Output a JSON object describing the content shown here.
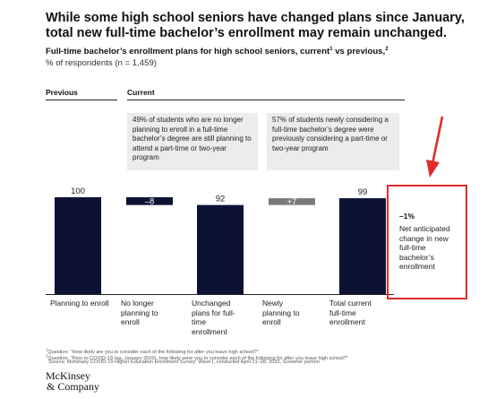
{
  "header": {
    "title": "While some high school seniors have changed plans since January, total new full-time bachelor’s enrollment may remain unchanged.",
    "subtitle": "Full-time bachelor’s enrollment plans for high school seniors, current",
    "subtitle_sup1": "1",
    "subtitle_mid": " vs previous,",
    "subtitle_sup2": "2",
    "unit_note": "% of respondents (n = 1,459)"
  },
  "columns": {
    "previous": "Previous",
    "current": "Current"
  },
  "notes": [
    "49% of students who are no longer planning to enroll in a full-time bachelor’s degree are still planning to attend a part-time or two-year program",
    "57% of students newly considering a full-time bachelor’s degree were previously considering a part-time or two-year program"
  ],
  "chart_data": {
    "type": "waterfall",
    "categories": [
      "Planning to enroll",
      "No longer planning to enroll",
      "Unchanged plans for full-time enrollment",
      "Newly planning to enroll",
      "Total current full-time enrollment"
    ],
    "values": [
      100,
      -8,
      92,
      7,
      99
    ],
    "data_labels": [
      "100",
      "–8",
      "92",
      "+7",
      "99"
    ],
    "bar_kinds": [
      "total",
      "decrease",
      "total",
      "increase",
      "total"
    ],
    "ylim": [
      0,
      100
    ],
    "colors": {
      "total": "#0b1233",
      "decrease": "#0b1233",
      "increase": "#7a7a7a",
      "label_inside": "#ffffff",
      "label_outside": "#222222"
    }
  },
  "callout": {
    "value": "–1%",
    "text": "Net anticipated change in new full-time bachelor’s enrollment",
    "border_color": "#e02b2b"
  },
  "footnotes": {
    "q1_sup": "1",
    "q1": "Question: “How likely are you to consider each of the following for after you leave high school?”",
    "q2_sup": "2",
    "q2": "Question: “Prior to COVID-19 (eg, January 2020), how likely were you to consider each of the following for after you leave high school?”",
    "source": "Source: McKinsey COVID-19 Higher Education Enrollment Survey: Wave I, conducted April 21–28, 2020, Screener portion"
  },
  "logo": {
    "line1": "McKinsey",
    "line2": "& Company"
  }
}
